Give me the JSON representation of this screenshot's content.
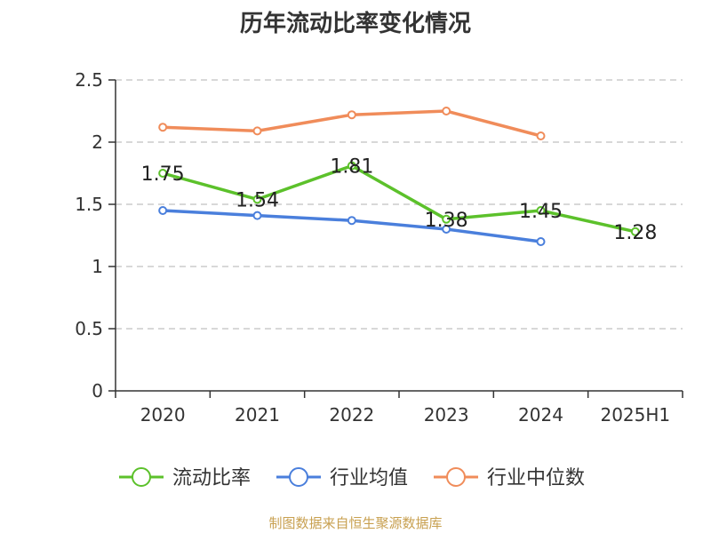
{
  "title": "历年流动比率变化情况",
  "source": "制图数据来自恒生聚源数据库",
  "chart_data": {
    "type": "line",
    "title": "历年流动比率变化情况",
    "categories": [
      "2020",
      "2021",
      "2022",
      "2023",
      "2024",
      "2025H1"
    ],
    "ylim": [
      0,
      2.5
    ],
    "yticks": [
      "0",
      "0.5",
      "1",
      "1.5",
      "2",
      "2.5"
    ],
    "grid": true,
    "legend_position": "bottom",
    "series": [
      {
        "name": "流动比率",
        "color": "#5cc12b",
        "values": [
          1.75,
          1.54,
          1.81,
          1.38,
          1.45,
          1.28
        ],
        "labels": [
          "1.75",
          "1.54",
          "1.81",
          "1.38",
          "1.45",
          "1.28"
        ],
        "show_labels": true
      },
      {
        "name": "行业均值",
        "color": "#4a7fdc",
        "values": [
          1.45,
          1.41,
          1.37,
          1.3,
          1.2,
          null
        ],
        "show_labels": false
      },
      {
        "name": "行业中位数",
        "color": "#f08c5a",
        "values": [
          2.12,
          2.09,
          2.22,
          2.25,
          2.05,
          null
        ],
        "show_labels": false
      }
    ]
  }
}
